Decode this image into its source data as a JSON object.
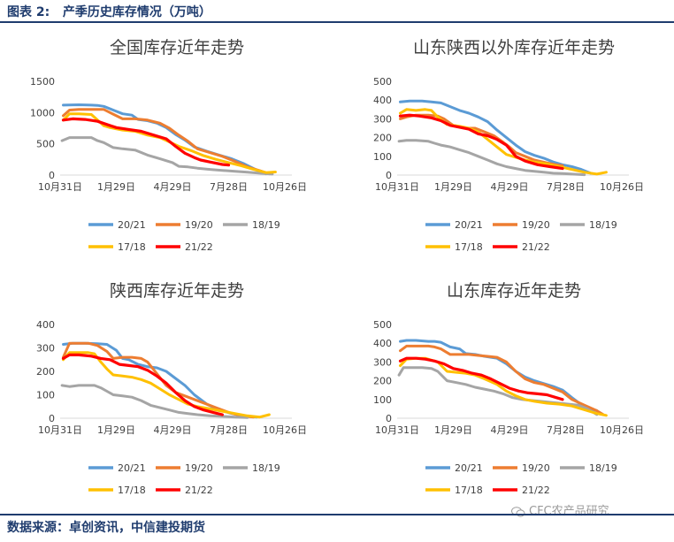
{
  "header": {
    "title": "图表 2:   产季历史库存情况（万吨）"
  },
  "footer": {
    "source": "数据来源：卓创资讯，中信建投期货"
  },
  "watermark": {
    "text": "CFC农产品研究",
    "icon": "wechat-icon"
  },
  "series_styles": {
    "20/21": "#5b9bd5",
    "19/20": "#ed7d31",
    "18/19": "#a5a5a5",
    "17/18": "#ffc000",
    "21/22": "#ff0000"
  },
  "chart_data": [
    {
      "type": "line",
      "title": "全国库存近年走势",
      "x_ticks": [
        "10月31日",
        "1月29日",
        "4月29日",
        "7月28日",
        "10月26日"
      ],
      "x_tick_days": [
        0,
        90,
        180,
        270,
        360
      ],
      "xlim": [
        0,
        360
      ],
      "ylim": [
        0,
        1500
      ],
      "y_ticks": [
        0,
        500,
        1000,
        1500
      ],
      "series": [
        {
          "name": "20/21",
          "x": [
            5,
            30,
            50,
            60,
            70,
            85,
            100,
            115,
            125,
            140,
            155,
            170,
            185,
            200,
            215,
            235,
            255,
            275,
            295,
            315,
            330
          ],
          "y": [
            1120,
            1125,
            1120,
            1115,
            1100,
            1040,
            980,
            960,
            890,
            870,
            830,
            760,
            650,
            560,
            450,
            380,
            320,
            260,
            180,
            80,
            20
          ]
        },
        {
          "name": "19/20",
          "x": [
            5,
            15,
            30,
            50,
            70,
            90,
            100,
            120,
            140,
            160,
            175,
            190,
            205,
            220,
            240,
            260,
            280,
            300,
            320,
            335
          ],
          "y": [
            950,
            1040,
            1050,
            1050,
            1050,
            950,
            900,
            900,
            880,
            830,
            750,
            640,
            540,
            420,
            360,
            300,
            220,
            130,
            70,
            20
          ]
        },
        {
          "name": "18/19",
          "x": [
            3,
            15,
            30,
            50,
            60,
            70,
            85,
            100,
            120,
            140,
            160,
            180,
            190,
            205,
            220,
            240,
            260,
            280,
            300,
            320,
            340
          ],
          "y": [
            550,
            600,
            600,
            600,
            550,
            520,
            440,
            420,
            400,
            320,
            260,
            200,
            140,
            130,
            110,
            90,
            75,
            60,
            45,
            30,
            15
          ]
        },
        {
          "name": "17/18",
          "x": [
            5,
            15,
            30,
            50,
            60,
            70,
            80,
            100,
            120,
            140,
            160,
            175,
            190,
            210,
            230,
            250,
            270,
            290,
            310,
            330,
            345
          ],
          "y": [
            880,
            980,
            980,
            970,
            880,
            790,
            760,
            720,
            700,
            640,
            600,
            530,
            460,
            390,
            310,
            250,
            200,
            150,
            90,
            40,
            50
          ]
        },
        {
          "name": "21/22",
          "x": [
            5,
            20,
            40,
            60,
            75,
            90,
            110,
            130,
            150,
            170,
            185,
            200,
            215,
            225,
            240,
            260,
            270
          ],
          "y": [
            880,
            900,
            890,
            860,
            810,
            760,
            730,
            700,
            640,
            580,
            460,
            350,
            280,
            240,
            210,
            170,
            160
          ]
        }
      ]
    },
    {
      "type": "line",
      "title": "山东陕西以外库存近年走势",
      "x_ticks": [
        "10月31日",
        "1月29日",
        "4月29日",
        "7月28日",
        "10月26日"
      ],
      "x_tick_days": [
        0,
        90,
        180,
        270,
        360
      ],
      "xlim": [
        0,
        360
      ],
      "ylim": [
        0,
        500
      ],
      "y_ticks": [
        0,
        100,
        200,
        300,
        400,
        500
      ],
      "series": [
        {
          "name": "20/21",
          "x": [
            5,
            20,
            40,
            55,
            70,
            85,
            100,
            115,
            130,
            145,
            160,
            175,
            190,
            205,
            220,
            235,
            250,
            265,
            280,
            295,
            310
          ],
          "y": [
            390,
            395,
            395,
            390,
            385,
            365,
            345,
            330,
            310,
            285,
            240,
            200,
            160,
            125,
            105,
            90,
            70,
            55,
            45,
            30,
            10
          ]
        },
        {
          "name": "19/20",
          "x": [
            5,
            15,
            30,
            50,
            65,
            75,
            90,
            110,
            125,
            140,
            155,
            170,
            180,
            190,
            205,
            220,
            240,
            255,
            265
          ],
          "y": [
            300,
            310,
            320,
            320,
            315,
            300,
            265,
            250,
            250,
            230,
            210,
            175,
            150,
            120,
            100,
            80,
            65,
            55,
            50
          ]
        },
        {
          "name": "18/19",
          "x": [
            3,
            15,
            30,
            50,
            60,
            70,
            85,
            100,
            115,
            130,
            145,
            160,
            175,
            190,
            205,
            220,
            235,
            250,
            265,
            280,
            300
          ],
          "y": [
            180,
            185,
            185,
            180,
            170,
            160,
            150,
            135,
            120,
            100,
            80,
            60,
            45,
            35,
            25,
            20,
            15,
            10,
            8,
            5,
            2
          ]
        },
        {
          "name": "17/18",
          "x": [
            5,
            15,
            30,
            45,
            55,
            65,
            80,
            100,
            115,
            130,
            145,
            160,
            175,
            190,
            205,
            220,
            240,
            260,
            280,
            300,
            320,
            335
          ],
          "y": [
            330,
            350,
            345,
            350,
            345,
            310,
            270,
            260,
            250,
            230,
            190,
            150,
            110,
            95,
            80,
            70,
            60,
            45,
            30,
            15,
            5,
            15
          ]
        },
        {
          "name": "21/22",
          "x": [
            5,
            20,
            35,
            55,
            70,
            85,
            100,
            115,
            130,
            145,
            160,
            175,
            190,
            205,
            215,
            225,
            235,
            245,
            255,
            265
          ],
          "y": [
            315,
            320,
            315,
            305,
            290,
            265,
            255,
            245,
            220,
            210,
            190,
            160,
            100,
            75,
            65,
            55,
            50,
            45,
            40,
            35
          ]
        }
      ]
    },
    {
      "type": "line",
      "title": "陕西库存近年走势",
      "x_ticks": [
        "10月31日",
        "1月29日",
        "4月29日",
        "7月28日",
        "10月26日"
      ],
      "x_tick_days": [
        0,
        90,
        180,
        270,
        360
      ],
      "xlim": [
        0,
        360
      ],
      "ylim": [
        0,
        400
      ],
      "y_ticks": [
        0,
        100,
        200,
        300,
        400
      ],
      "series": [
        {
          "name": "20/21",
          "x": [
            5,
            20,
            40,
            60,
            75,
            90,
            100,
            110,
            125,
            140,
            155,
            170,
            185,
            200,
            215,
            235,
            255,
            275,
            295,
            315
          ],
          "y": [
            315,
            320,
            320,
            318,
            315,
            290,
            255,
            250,
            230,
            220,
            215,
            200,
            170,
            140,
            100,
            60,
            35,
            20,
            10,
            5
          ]
        },
        {
          "name": "19/20",
          "x": [
            5,
            15,
            30,
            45,
            60,
            75,
            85,
            100,
            115,
            130,
            140,
            155,
            170,
            185,
            200,
            215,
            230,
            250,
            270,
            290,
            310
          ],
          "y": [
            260,
            320,
            320,
            320,
            310,
            285,
            255,
            260,
            260,
            255,
            240,
            190,
            140,
            110,
            95,
            80,
            65,
            45,
            25,
            10,
            5
          ]
        },
        {
          "name": "18/19",
          "x": [
            3,
            15,
            30,
            45,
            55,
            65,
            75,
            85,
            100,
            115,
            130,
            145,
            160,
            175,
            190,
            205,
            220,
            240,
            260,
            280,
            300
          ],
          "y": [
            140,
            135,
            140,
            140,
            140,
            130,
            115,
            100,
            95,
            90,
            75,
            55,
            45,
            35,
            25,
            20,
            15,
            10,
            8,
            5,
            3
          ]
        },
        {
          "name": "17/18",
          "x": [
            5,
            15,
            30,
            45,
            55,
            65,
            75,
            85,
            100,
            115,
            130,
            145,
            160,
            175,
            190,
            205,
            220,
            240,
            260,
            280,
            300,
            320,
            335
          ],
          "y": [
            250,
            280,
            280,
            280,
            275,
            240,
            210,
            185,
            180,
            175,
            165,
            150,
            125,
            100,
            80,
            60,
            50,
            40,
            30,
            20,
            10,
            5,
            15
          ]
        },
        {
          "name": "21/22",
          "x": [
            5,
            15,
            30,
            50,
            65,
            80,
            95,
            110,
            125,
            140,
            155,
            170,
            185,
            200,
            215,
            230,
            245,
            260
          ],
          "y": [
            255,
            270,
            270,
            265,
            255,
            250,
            230,
            225,
            220,
            205,
            180,
            150,
            110,
            75,
            50,
            35,
            25,
            15
          ]
        }
      ]
    },
    {
      "type": "line",
      "title": "山东库存近年走势",
      "x_ticks": [
        "10月31日",
        "1月29日",
        "4月29日",
        "7月28日",
        "10月26日"
      ],
      "x_tick_days": [
        0,
        90,
        180,
        270,
        360
      ],
      "xlim": [
        0,
        360
      ],
      "ylim": [
        0,
        500
      ],
      "y_ticks": [
        0,
        100,
        200,
        300,
        400,
        500
      ],
      "series": [
        {
          "name": "20/21",
          "x": [
            5,
            15,
            30,
            50,
            60,
            70,
            85,
            100,
            110,
            125,
            140,
            160,
            175,
            190,
            205,
            220,
            235,
            250,
            265,
            280,
            300,
            320
          ],
          "y": [
            410,
            415,
            415,
            410,
            410,
            405,
            380,
            370,
            345,
            340,
            330,
            320,
            290,
            250,
            220,
            200,
            185,
            170,
            150,
            110,
            60,
            40
          ]
        },
        {
          "name": "19/20",
          "x": [
            5,
            15,
            30,
            50,
            60,
            70,
            85,
            100,
            115,
            130,
            145,
            160,
            175,
            190,
            205,
            220,
            235,
            250,
            265,
            280,
            300,
            320,
            330
          ],
          "y": [
            360,
            385,
            385,
            385,
            380,
            370,
            340,
            340,
            340,
            335,
            330,
            325,
            300,
            250,
            210,
            190,
            180,
            160,
            140,
            100,
            70,
            40,
            20
          ]
        },
        {
          "name": "18/19",
          "x": [
            3,
            10,
            25,
            40,
            55,
            65,
            80,
            95,
            110,
            125,
            140,
            155,
            170,
            185,
            200,
            215,
            230,
            245,
            260,
            275,
            290,
            305,
            320
          ],
          "y": [
            230,
            270,
            270,
            270,
            265,
            250,
            200,
            190,
            180,
            165,
            155,
            145,
            130,
            110,
            100,
            95,
            90,
            85,
            80,
            75,
            70,
            50,
            20
          ]
        },
        {
          "name": "17/18",
          "x": [
            5,
            15,
            30,
            45,
            55,
            65,
            80,
            95,
            110,
            125,
            140,
            160,
            175,
            190,
            205,
            220,
            240,
            260,
            280,
            300,
            320,
            335
          ],
          "y": [
            280,
            315,
            320,
            320,
            310,
            300,
            250,
            245,
            240,
            230,
            210,
            180,
            145,
            120,
            100,
            90,
            80,
            75,
            65,
            45,
            25,
            15
          ]
        },
        {
          "name": "21/22",
          "x": [
            5,
            15,
            30,
            45,
            60,
            75,
            90,
            105,
            120,
            135,
            150,
            165,
            180,
            195,
            210,
            225,
            240,
            255,
            265
          ],
          "y": [
            305,
            320,
            320,
            315,
            305,
            290,
            265,
            255,
            240,
            230,
            210,
            185,
            160,
            145,
            135,
            130,
            125,
            110,
            100
          ]
        }
      ]
    }
  ],
  "legend_rows": [
    [
      "20/21",
      "19/20",
      "18/19"
    ],
    [
      "17/18",
      "21/22"
    ]
  ]
}
